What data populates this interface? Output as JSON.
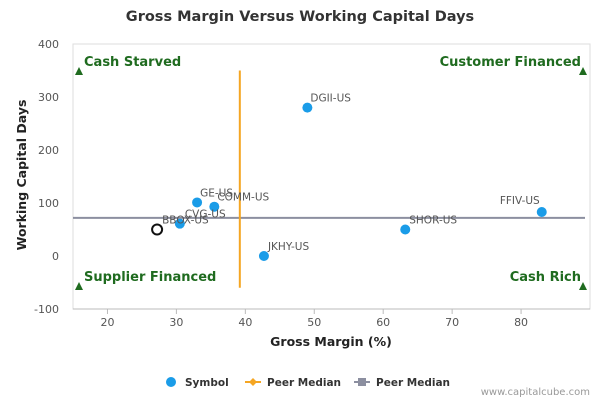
{
  "chart_data": {
    "type": "scatter",
    "title": "Gross Margin Versus Working Capital Days",
    "xlabel": "Gross Margin (%)",
    "ylabel": "Working Capital Days",
    "xlim": [
      15,
      90
    ],
    "ylim": [
      -100,
      400
    ],
    "xticks": [
      20,
      30,
      40,
      50,
      60,
      70,
      80
    ],
    "yticks": [
      -100,
      0,
      100,
      200,
      300,
      400
    ],
    "grid": false,
    "series": [
      {
        "name": "Symbol",
        "color": "#1a9ce8",
        "points": [
          {
            "label": "DGII-US",
            "x": 49,
            "y": 280
          },
          {
            "label": "GE-US",
            "x": 33,
            "y": 101
          },
          {
            "label": "COMM-US",
            "x": 35.5,
            "y": 93
          },
          {
            "label": "CVG-US",
            "x": 30.5,
            "y": 61
          },
          {
            "label": "BBOX-US",
            "x": 27.2,
            "y": 50,
            "highlighted": true
          },
          {
            "label": "JKHY-US",
            "x": 42.7,
            "y": 0
          },
          {
            "label": "SHOR-US",
            "x": 63.2,
            "y": 50
          },
          {
            "label": "FFIV-US",
            "x": 83,
            "y": 83
          }
        ]
      }
    ],
    "peer_median_x": {
      "name": "Peer Median",
      "value": 39.2,
      "color": "#f5a623",
      "y_range": [
        -60,
        350
      ]
    },
    "peer_median_y": {
      "name": "Peer Median",
      "value": 72,
      "color": "#8c8fa0"
    },
    "quadrant_labels": [
      {
        "text": "Cash Starved",
        "position": "top-left"
      },
      {
        "text": "Customer Financed",
        "position": "top-right"
      },
      {
        "text": "Supplier Financed",
        "position": "bottom-left"
      },
      {
        "text": "Cash Rich",
        "position": "bottom-right"
      }
    ],
    "quadrant_color": "#1f6b1f",
    "legend": {
      "position": "bottom",
      "entries": [
        {
          "label": "Symbol",
          "marker": "circle",
          "color": "#1a9ce8"
        },
        {
          "label": "Peer Median",
          "marker": "diamond",
          "color": "#f5a623"
        },
        {
          "label": "Peer Median",
          "marker": "square",
          "color": "#8c8fa0"
        }
      ]
    },
    "watermark": "www.capitalcube.com"
  }
}
